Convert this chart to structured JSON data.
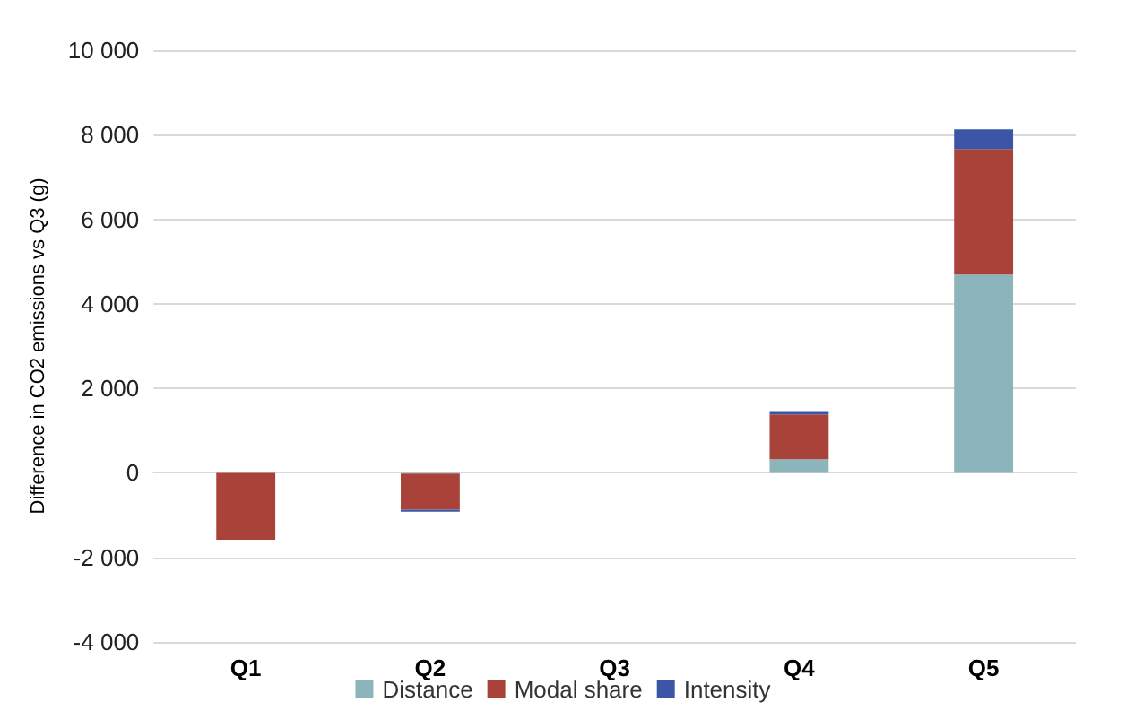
{
  "chart_data": {
    "type": "bar",
    "stacked": true,
    "ylabel": "Difference in CO2 emissions vs Q3 (g)",
    "categories": [
      "Q1",
      "Q2",
      "Q3",
      "Q4",
      "Q5"
    ],
    "series": [
      {
        "name": "Distance",
        "color": "#8cb5bb",
        "values": [
          0,
          -20,
          0,
          320,
          4690
        ]
      },
      {
        "name": "Modal share",
        "color": "#a9433a",
        "values": [
          -1580,
          -850,
          0,
          1060,
          2970
        ]
      },
      {
        "name": "Intensity",
        "color": "#3b56a6",
        "values": [
          0,
          -50,
          0,
          80,
          470
        ]
      }
    ],
    "ylim": [
      -4000,
      10000
    ],
    "yticks": [
      {
        "value": -4000,
        "label": "-4 000"
      },
      {
        "value": -2000,
        "label": "-2 000"
      },
      0,
      {
        "value": 2000,
        "label": "2 000"
      },
      {
        "value": 4000,
        "label": "4 000"
      },
      {
        "value": 6000,
        "label": "6 000"
      },
      {
        "value": 8000,
        "label": "8 000"
      },
      {
        "value": 10000,
        "label": "10 000"
      }
    ],
    "grid": true,
    "legend": "bottom"
  }
}
